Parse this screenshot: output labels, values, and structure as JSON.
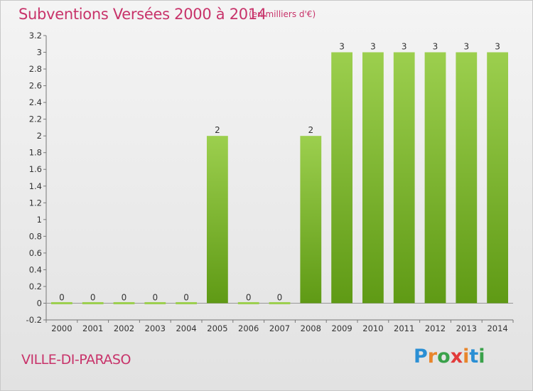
{
  "title": "Subventions Versées 2000 à 2014",
  "unit_note": "(en milliers d'€)",
  "commune": "VILLE-DI-PARASO",
  "logo": {
    "letters": [
      "P",
      "r",
      "o",
      "x",
      "i",
      "t",
      "i"
    ],
    "colors": [
      "#2a8fd4",
      "#e8852b",
      "#3aa14a",
      "#e23a3a",
      "#e8852b",
      "#2a8fd4",
      "#3aa14a"
    ]
  },
  "colors": {
    "bar_light": "#9ccf4e",
    "bar_dark": "#5f9a15",
    "title": "#c8336a"
  },
  "chart_data": {
    "type": "bar",
    "categories": [
      "2000",
      "2001",
      "2002",
      "2003",
      "2004",
      "2005",
      "2006",
      "2007",
      "2008",
      "2009",
      "2010",
      "2011",
      "2012",
      "2013",
      "2014"
    ],
    "values": [
      0,
      0,
      0,
      0,
      0,
      2,
      0,
      0,
      2,
      3,
      3,
      3,
      3,
      3,
      3
    ],
    "data_labels": [
      "0",
      "0",
      "0",
      "0",
      "0",
      "2",
      "0",
      "0",
      "2",
      "3",
      "3",
      "3",
      "3",
      "3",
      "3"
    ],
    "ylim": [
      -0.2,
      3.2
    ],
    "yticks": [
      -0.2,
      0,
      0.2,
      0.4,
      0.6,
      0.8,
      1,
      1.2,
      1.4,
      1.6,
      1.8,
      2,
      2.2,
      2.4,
      2.6,
      2.8,
      3,
      3.2
    ],
    "ytick_labels": [
      "-0.2",
      "0",
      "0.2",
      "0.4",
      "0.6",
      "0.8",
      "1",
      "1.2",
      "1.4",
      "1.6",
      "1.8",
      "2",
      "2.2",
      "2.4",
      "2.6",
      "2.8",
      "3",
      "3.2"
    ],
    "grid": false,
    "legend": "none"
  }
}
